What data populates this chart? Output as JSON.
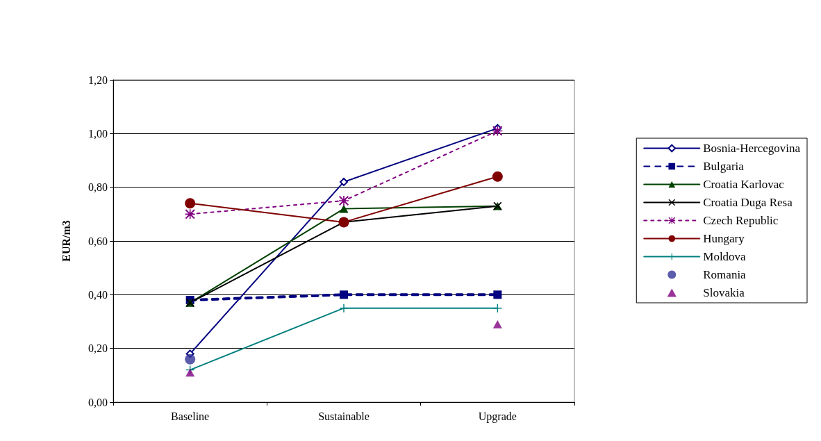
{
  "chart_data": {
    "type": "line",
    "ylabel": "EUR/m3",
    "categories": [
      "Baseline",
      "Sustainable",
      "Upgrade"
    ],
    "ylim": [
      0,
      1.2
    ],
    "yticks": [
      {
        "value": 0,
        "label": "0,00"
      },
      {
        "value": 0.2,
        "label": "0,20"
      },
      {
        "value": 0.4,
        "label": "0,40"
      },
      {
        "value": 0.6,
        "label": "0,60"
      },
      {
        "value": 0.8,
        "label": "0,80"
      },
      {
        "value": 1,
        "label": "1,00"
      },
      {
        "value": 1.2,
        "label": "1,20"
      }
    ],
    "grid": "y",
    "legend": "right",
    "series": [
      {
        "name": "Bosnia-Hercegovina",
        "color": "#000080",
        "marker": "diamond",
        "line_style": "solid",
        "values": [
          0.18,
          0.82,
          1.02
        ]
      },
      {
        "name": "Bulgaria",
        "color": "#000080",
        "marker": "square",
        "line_style": "dashed",
        "values": [
          0.38,
          0.4,
          0.4
        ]
      },
      {
        "name": "Croatia Karlovac",
        "color": "#004000",
        "marker": "triangle",
        "line_style": "solid",
        "values": [
          0.37,
          0.72,
          0.73
        ]
      },
      {
        "name": "Croatia Duga Resa",
        "color": "#000000",
        "marker": "cross",
        "line_style": "solid",
        "values": [
          0.37,
          0.67,
          0.73
        ]
      },
      {
        "name": "Czech Republic",
        "color": "#800080",
        "marker": "star",
        "line_style": "dotted",
        "values": [
          0.7,
          0.75,
          1.01
        ]
      },
      {
        "name": "Hungary",
        "color": "#800000",
        "marker": "circle",
        "line_style": "solid",
        "values": [
          0.74,
          0.67,
          0.84
        ]
      },
      {
        "name": "Moldova",
        "color": "#008080",
        "marker": "plus",
        "line_style": "solid",
        "values": [
          0.12,
          0.35,
          0.35
        ]
      },
      {
        "name": "Romania",
        "type": "scatter",
        "color": "#333399",
        "marker": "circle",
        "values": [
          0.16,
          null,
          null
        ]
      },
      {
        "name": "Slovakia",
        "type": "scatter",
        "color": "#800080",
        "marker": "triangle",
        "values": [
          0.11,
          null,
          0.29
        ]
      }
    ]
  }
}
